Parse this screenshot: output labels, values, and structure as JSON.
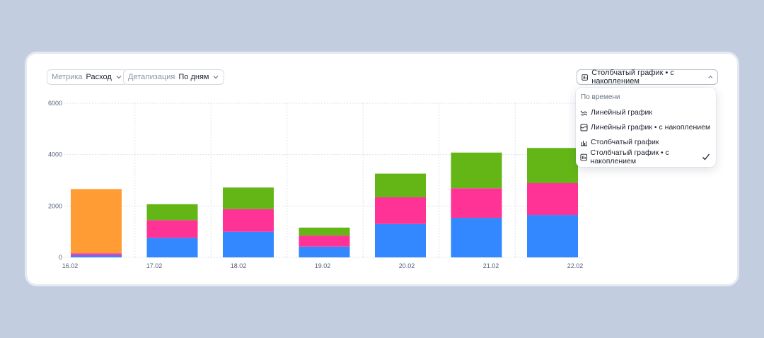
{
  "filters": {
    "metric": {
      "label": "Метрика",
      "value": "Расход"
    },
    "detail": {
      "label": "Детализация",
      "value": "По дням"
    }
  },
  "chart_type_select": {
    "value": "Столбчатый график • с накоплением",
    "icon": "stacked-bar-chart-icon"
  },
  "dropdown": {
    "header": "По времени",
    "items": [
      {
        "label": "Линейный график",
        "icon": "line-chart-icon",
        "selected": false
      },
      {
        "label": "Линейный график • с накоплением",
        "icon": "stacked-line-chart-icon",
        "selected": false
      },
      {
        "label": "Столбчатый график",
        "icon": "bar-chart-icon",
        "selected": false
      },
      {
        "label": "Столбчатый график • с накоплением",
        "icon": "stacked-bar-chart-icon",
        "selected": true
      }
    ]
  },
  "colors": {
    "blue": "#3388ff",
    "pink": "#ff3395",
    "green": "#64b617",
    "orange": "#ff9c33",
    "purple": "#8d5cd6",
    "grid": "#dde2ea",
    "axis_text": "#55607a"
  },
  "chart_data": {
    "type": "bar",
    "stacked": true,
    "categories": [
      "16.02",
      "17.02",
      "18.02",
      "19.02",
      "20.02",
      "21.02",
      "22.02"
    ],
    "ylim": [
      0,
      6000
    ],
    "yticks": [
      "0",
      "2000",
      "4000",
      "6000"
    ],
    "grid": true,
    "series": [
      {
        "color": "#3388ff",
        "values": [
          40,
          760,
          1000,
          420,
          1300,
          1540,
          1650
        ]
      },
      {
        "color": "#8d5cd6",
        "values": [
          80,
          0,
          0,
          0,
          0,
          0,
          0
        ]
      },
      {
        "color": "#ff3395",
        "values": [
          40,
          690,
          880,
          430,
          1040,
          1150,
          1240
        ]
      },
      {
        "color": "#64b617",
        "values": [
          0,
          620,
          840,
          310,
          920,
          1390,
          1370
        ]
      },
      {
        "color": "#ff9c33",
        "values": [
          2500,
          0,
          0,
          0,
          0,
          0,
          0
        ]
      }
    ]
  }
}
